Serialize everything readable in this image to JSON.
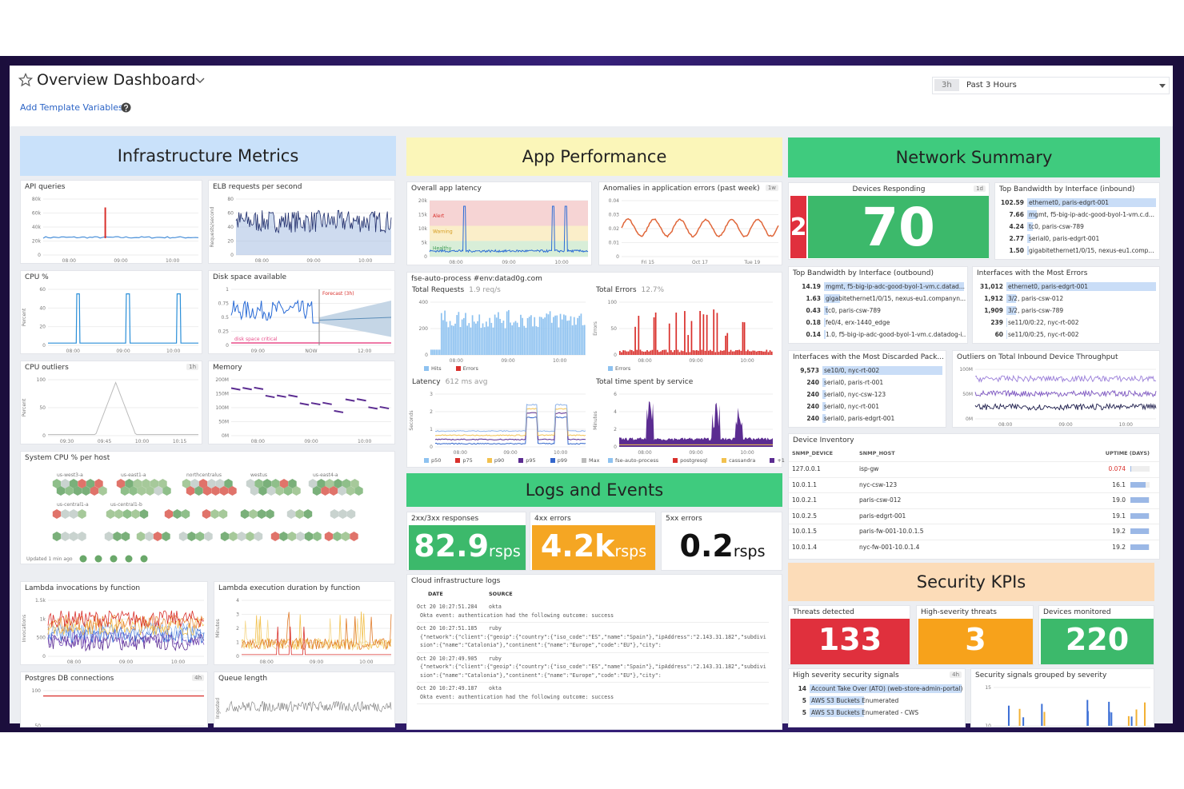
{
  "header": {
    "title": "Overview Dashboard",
    "template_link": "Add Template Variables",
    "time_badge": "3h",
    "time_range": "Past 3 Hours"
  },
  "infrastructure": {
    "title": "Infrastructure Metrics",
    "charts": [
      {
        "title": "API queries",
        "yticks": [
          "80k",
          "60k",
          "40k",
          "20k",
          "0"
        ],
        "xticks": [
          "08:00",
          "09:00",
          "10:00"
        ]
      },
      {
        "title": "ELB requests per second",
        "ylabel": "Requests/second",
        "yticks": [
          "80",
          "60",
          "40",
          "20",
          "0"
        ],
        "xticks": [
          "08:00",
          "09:00",
          "10:00"
        ]
      },
      {
        "title": "CPU %",
        "ylabel": "Percent",
        "yticks": [
          "60",
          "40",
          "20",
          "0"
        ],
        "xticks": [
          "08:00",
          "09:00",
          "10:00"
        ]
      },
      {
        "title": "Disk space available",
        "yticks": [
          "1",
          "0.75",
          "0.5",
          "0.25",
          "0"
        ],
        "xticks": [
          "09:00",
          "NOW",
          "12:00"
        ],
        "annotations": [
          "Forecast (3h)",
          "disk space critical"
        ]
      },
      {
        "title": "CPU outliers",
        "badge": "1h",
        "ylabel": "Percent",
        "yticks": [
          "100",
          "50",
          "0"
        ],
        "xticks": [
          "09:30",
          "09:45",
          "10:00",
          "10:15"
        ]
      },
      {
        "title": "Memory",
        "yticks": [
          "200M",
          "150M",
          "100M",
          "50M",
          "0M"
        ],
        "xticks": [
          "08:00",
          "09:00",
          "10:00"
        ]
      },
      {
        "title": "Lambda invocations by function",
        "ylabel": "Invocations",
        "yticks": [
          "1.5k",
          "1k",
          "500",
          "0"
        ],
        "xticks": [
          "08:00",
          "09:00",
          "10:00"
        ]
      },
      {
        "title": "Lambda execution duration by function",
        "ylabel": "Minutes",
        "yticks": [
          "4",
          "3",
          "2",
          "1",
          "0"
        ],
        "xticks": [
          "08:00",
          "09:00",
          "10:00"
        ]
      },
      {
        "title": "Postgres DB connections",
        "badge": "4h",
        "yticks": [
          "100",
          "50"
        ]
      },
      {
        "title": "Queue length",
        "ylabel": "Ingested"
      }
    ],
    "hostmap": {
      "title": "System CPU % per host",
      "groups": [
        "us-west3-a",
        "us-east1-a",
        "northcentralus",
        "westus",
        "us-east4-a",
        "us-central1-a",
        "us-central1-b"
      ],
      "updated": "Updated 1 min ago"
    }
  },
  "app_performance": {
    "title": "App Performance",
    "charts": [
      {
        "title": "Overall app latency",
        "yticks": [
          "20k",
          "15k",
          "10k",
          "5k",
          "0"
        ],
        "xticks": [
          "08:00",
          "09:00",
          "10:00"
        ],
        "annotations": [
          "Alert",
          "Warning",
          "Healthy"
        ]
      },
      {
        "title": "Anomalies in application errors (past week)",
        "badge": "1w",
        "yticks": [
          "0.04",
          "0.03",
          "0.02",
          "0.01",
          "0"
        ],
        "xticks": [
          "Fri 15",
          "Oct 17",
          "Tue 19"
        ]
      }
    ],
    "service": {
      "title": "fse-auto-process #env:datad0g.com",
      "charts": [
        {
          "title": "Total Requests",
          "subtitle": "1.9 req/s",
          "yticks": [
            "400",
            "200",
            "0"
          ],
          "xticks": [
            "08:00",
            "09:00",
            "10:00"
          ],
          "legend": [
            "Hits",
            "Errors"
          ]
        },
        {
          "title": "Total Errors",
          "subtitle": "12.7%",
          "ylabel": "Errors",
          "yticks": [
            "100",
            "50",
            "0"
          ],
          "xticks": [
            "08:00",
            "09:00",
            "10:00"
          ],
          "legend": [
            "Errors"
          ]
        },
        {
          "title": "Latency",
          "subtitle": "612 ms avg",
          "ylabel": "Seconds",
          "yticks": [
            "3",
            "2",
            "1",
            "0"
          ],
          "xticks": [
            "08:00",
            "09:00",
            "10:00"
          ],
          "legend": [
            "p50",
            "p75",
            "p90",
            "p95",
            "p99",
            "Max"
          ]
        },
        {
          "title": "Total time spent by service",
          "ylabel": "Minutes",
          "yticks": [
            "6",
            "4",
            "2",
            "0"
          ],
          "xticks": [
            "08:00",
            "09:00",
            "10:00"
          ],
          "legend": [
            "fse-auto-process",
            "postgresql",
            "cassandra",
            "+1"
          ]
        }
      ]
    }
  },
  "logs_events": {
    "title": "Logs and Events",
    "kpis": [
      {
        "label": "2xx/3xx responses",
        "value": "82.9",
        "unit": "rsps"
      },
      {
        "label": "4xx errors",
        "value": "4.2k",
        "unit": "rsps"
      },
      {
        "label": "5xx errors",
        "value": "0.2",
        "unit": "rsps"
      }
    ],
    "log_stream": {
      "title": "Cloud infrastructure logs",
      "columns": [
        "DATE",
        "SOURCE"
      ],
      "entries": [
        {
          "date": "Oct 20 10:27:51.284",
          "source": "okta",
          "message": "Okta event: authentication had the following outcome: success"
        },
        {
          "date": "Oct 20 10:27:51.185",
          "source": "ruby",
          "message": "{\"network\":{\"client\":{\"geoip\":{\"country\":{\"iso_code\":\"ES\",\"name\":\"Spain\"},\"ipAddress\":\"2.143.31.182\",\"subdivision\":{\"name\":\"Catalonia\"},\"continent\":{\"name\":\"Europe\",\"code\":\"EU\"},\"city\":"
        },
        {
          "date": "Oct 20 10:27:49.905",
          "source": "ruby",
          "message": "{\"network\":{\"client\":{\"geoip\":{\"country\":{\"iso_code\":\"ES\",\"name\":\"Spain\"},\"ipAddress\":\"2.143.31.182\",\"subdivision\":{\"name\":\"Catalonia\"},\"continent\":{\"name\":\"Europe\",\"code\":\"EU\"},\"city\":"
        },
        {
          "date": "Oct 20 10:27:49.187",
          "source": "okta",
          "message": "Okta event: authentication had the following outcome: success"
        }
      ]
    }
  },
  "network": {
    "title": "Network Summary",
    "devices": {
      "title": "Devices Responding",
      "badge": "1d",
      "down": "2",
      "up": "70"
    },
    "tables": [
      {
        "title": "Top Bandwidth by Interface (inbound)",
        "rows": [
          [
            "102.59",
            "ethernet0, paris-edgrt-001"
          ],
          [
            "7.66",
            "mgmt, f5-big-ip-adc-good-byol-1-vm.c.d..."
          ],
          [
            "4.24",
            "tc0, paris-csw-789"
          ],
          [
            "2.77",
            "serial0, paris-edgrt-001"
          ],
          [
            "1.50",
            "gigabitethernet1/0/15, nexus-eu1.comp..."
          ]
        ]
      },
      {
        "title": "Top Bandwidth by Interface (outbound)",
        "rows": [
          [
            "14.19",
            "mgmt, f5-big-ip-adc-good-byol-1-vm.c.datad..."
          ],
          [
            "1.63",
            "gigabitethernet1/0/15, nexus-eu1.companyn..."
          ],
          [
            "0.43",
            "tc0, paris-csw-789"
          ],
          [
            "0.18",
            "fe0/4, erx-1440_edge"
          ],
          [
            "0.14",
            "1.0, f5-big-ip-adc-good-byol-1-vm.c.datadog-i..."
          ]
        ]
      },
      {
        "title": "Interfaces with the Most Errors",
        "rows": [
          [
            "31,012",
            "ethernet0, paris-edgrt-001"
          ],
          [
            "1,912",
            "3/2, paris-csw-012"
          ],
          [
            "1,909",
            "3/2, paris-csw-789"
          ],
          [
            "239",
            "se11/0/0:22, nyc-rt-002"
          ],
          [
            "60",
            "se11/0/0:25, nyc-rt-002"
          ]
        ]
      },
      {
        "title": "Interfaces with the Most Discarded Pack...",
        "rows": [
          [
            "9,573",
            "se10/0, nyc-rt-002"
          ],
          [
            "240",
            "serial0, paris-rt-001"
          ],
          [
            "240",
            "serial0, nyc-csw-123"
          ],
          [
            "240",
            "serial0, nyc-rt-001"
          ],
          [
            "240",
            "serial0, paris-edgrt-001"
          ]
        ]
      }
    ],
    "throughput": {
      "title": "Outliers on Total Inbound Device Throughput",
      "yticks": [
        "100M",
        "50M",
        "0M"
      ],
      "xticks": [
        "08:00",
        "09:00",
        "10:00"
      ]
    },
    "inventory": {
      "title": "Device Inventory",
      "columns": [
        "SNMP_DEVICE",
        "SNMP_HOST",
        "UPTIME (DAYS)"
      ],
      "rows": [
        [
          "127.0.0.1",
          "isp-gw",
          "0.074"
        ],
        [
          "10.0.1.1",
          "nyc-csw-123",
          "16.1"
        ],
        [
          "10.0.2.1",
          "paris-csw-012",
          "19.0"
        ],
        [
          "10.0.2.5",
          "paris-edgrt-001",
          "19.1"
        ],
        [
          "10.0.1.5",
          "paris-fw-001-10.0.1.5",
          "19.2"
        ],
        [
          "10.0.1.4",
          "nyc-fw-001-10.0.1.4",
          "19.2"
        ]
      ]
    }
  },
  "security": {
    "title": "Security KPIs",
    "kpis": [
      {
        "label": "Threats detected",
        "value": "133"
      },
      {
        "label": "High-severity threats",
        "value": "3"
      },
      {
        "label": "Devices monitored",
        "value": "220"
      }
    ],
    "signals": {
      "title": "High severity security signals",
      "badge": "4h",
      "rows": [
        [
          "14",
          "Account Take Over (ATO) (web-store-admin-portal)"
        ],
        [
          "5",
          "AWS S3 Buckets Enumerated"
        ],
        [
          "5",
          "AWS S3 Buckets Enumerated - CWS"
        ]
      ]
    },
    "grouped": {
      "title": "Security signals grouped by severity",
      "yticks": [
        "15",
        "10"
      ]
    }
  }
}
